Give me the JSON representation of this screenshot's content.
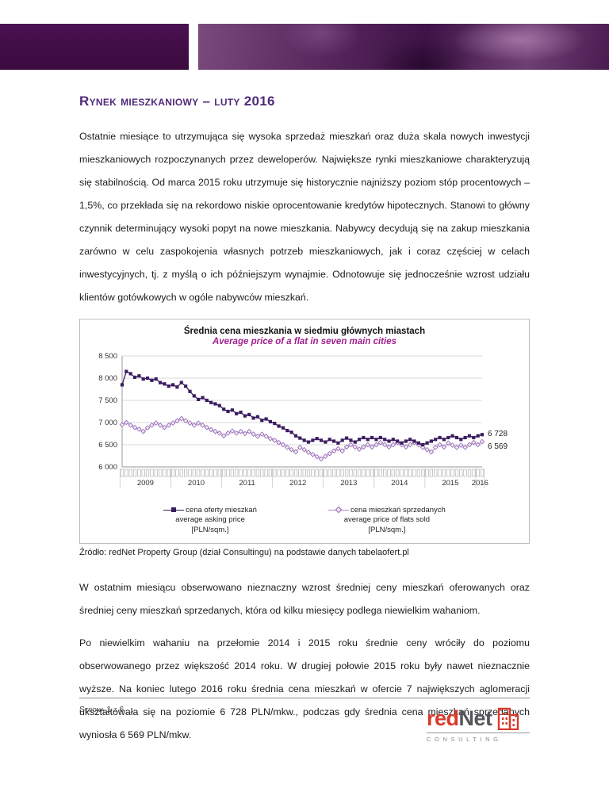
{
  "page": {
    "title": "Rynek mieszkaniowy – luty 2016",
    "paragraphs": [
      "Ostatnie miesiące to utrzymująca się wysoka sprzedaż mieszkań oraz duża skala nowych inwestycji mieszkaniowych rozpoczynanych przez deweloperów. Największe rynki mieszkaniowe charakteryzują się stabilnością. Od marca 2015 roku utrzymuje się historycznie najniższy poziom stóp procentowych – 1,5%, co przekłada się na rekordowo niskie oprocentowanie kredytów hipotecznych. Stanowi to główny czynnik determinujący wysoki popyt na nowe mieszkania. Nabywcy decydują się na zakup mieszkania zarówno w celu zaspokojenia własnych potrzeb mieszkaniowych, jak i coraz częściej w celach inwestycyjnych, tj. z myślą o ich późniejszym wynajmie. Odnotowuje się jednocześnie wzrost udziału klientów gotówkowych w ogóle nabywców mieszkań.",
      "W ostatnim miesiącu obserwowano nieznaczny wzrost średniej ceny mieszkań oferowanych oraz średniej ceny mieszkań sprzedanych, która od kilku miesięcy podlega niewielkim wahaniom.",
      "Po niewielkim wahaniu na przełomie 2014 i 2015 roku średnie ceny wróciły do poziomu obserwowanego przez większość 2014 roku. W drugiej połowie 2015 roku były nawet nieznacznie wyższe. Na koniec lutego 2016 roku średnia cena mieszkań w ofercie 7 największych aglomeracji ukształtowała się na poziomie 6 728 PLN/mkw., podczas gdy średnia cena mieszkań sprzedanych wyniosła 6 569 PLN/mkw."
    ],
    "source_note": "Źródło: redNet Property Group (dział Consultingu) na podstawie danych tabelaofert.pl",
    "footer": {
      "page_label": "Strona 1 z 6"
    },
    "logo": {
      "brand_red": "red",
      "brand_gray": "Net",
      "subtext": "CONSULTING"
    }
  },
  "colors": {
    "title_purple": "#4f2a7a",
    "chart_subtitle_magenta": "#a0208e",
    "series_asking_dark_purple": "#3b1d5f",
    "series_sold_light_purple": "#b48ccb",
    "banner_dark_purple": "#3a0a3e",
    "logo_red": "#d93a2b"
  },
  "chart_data": {
    "type": "line",
    "title": "Średnia cena mieszkania w siedmiu głównych miastach",
    "subtitle": "Average price of a flat in seven main cities",
    "xlabel": "",
    "ylabel": "",
    "ylim": [
      6000,
      8500
    ],
    "yticks": [
      6000,
      6500,
      7000,
      7500,
      8000,
      8500
    ],
    "ytick_labels": [
      "6 000",
      "6 500",
      "7 000",
      "7 500",
      "8 000",
      "8 500"
    ],
    "x_year_labels": [
      "2009",
      "2010",
      "2011",
      "2012",
      "2013",
      "2014",
      "2015",
      "2016"
    ],
    "months_per_year": [
      12,
      12,
      12,
      12,
      12,
      12,
      12,
      2
    ],
    "grid": true,
    "legend_position": "bottom",
    "end_labels": [
      "6 728",
      "6 569"
    ],
    "series": [
      {
        "name": "cena oferty mieszkań",
        "name_en": "average asking price",
        "unit": "[PLN/sqm.]",
        "marker": "square",
        "color": "#3b1d5f",
        "values": [
          7850,
          8150,
          8100,
          8020,
          8050,
          7980,
          8000,
          7950,
          7980,
          7900,
          7870,
          7820,
          7850,
          7800,
          7900,
          7820,
          7700,
          7600,
          7520,
          7560,
          7500,
          7450,
          7420,
          7380,
          7300,
          7250,
          7280,
          7200,
          7230,
          7150,
          7180,
          7100,
          7130,
          7050,
          7080,
          7020,
          6980,
          6920,
          6880,
          6820,
          6780,
          6700,
          6650,
          6600,
          6560,
          6600,
          6640,
          6600,
          6560,
          6620,
          6580,
          6540,
          6600,
          6650,
          6600,
          6560,
          6620,
          6660,
          6620,
          6660,
          6620,
          6660,
          6620,
          6580,
          6620,
          6580,
          6540,
          6580,
          6620,
          6580,
          6540,
          6500,
          6540,
          6580,
          6620,
          6660,
          6620,
          6660,
          6700,
          6660,
          6620,
          6660,
          6700,
          6660,
          6700,
          6728
        ]
      },
      {
        "name": "cena mieszkań sprzedanych",
        "name_en": "average price of flats sold",
        "unit": "[PLN/sqm.]",
        "marker": "diamond",
        "color": "#b48ccb",
        "values": [
          6950,
          7000,
          6940,
          6890,
          6850,
          6800,
          6880,
          6940,
          6990,
          6940,
          6890,
          6940,
          6990,
          7040,
          7090,
          7040,
          6990,
          6940,
          6990,
          6940,
          6890,
          6840,
          6800,
          6760,
          6700,
          6760,
          6810,
          6760,
          6800,
          6750,
          6800,
          6740,
          6690,
          6740,
          6690,
          6640,
          6600,
          6550,
          6500,
          6440,
          6390,
          6340,
          6440,
          6390,
          6330,
          6280,
          6230,
          6180,
          6240,
          6300,
          6360,
          6410,
          6360,
          6450,
          6500,
          6450,
          6400,
          6450,
          6500,
          6450,
          6500,
          6550,
          6500,
          6450,
          6500,
          6550,
          6500,
          6450,
          6500,
          6550,
          6500,
          6440,
          6390,
          6340,
          6440,
          6500,
          6450,
          6540,
          6490,
          6440,
          6490,
          6440,
          6500,
          6550,
          6500,
          6569
        ]
      }
    ]
  }
}
